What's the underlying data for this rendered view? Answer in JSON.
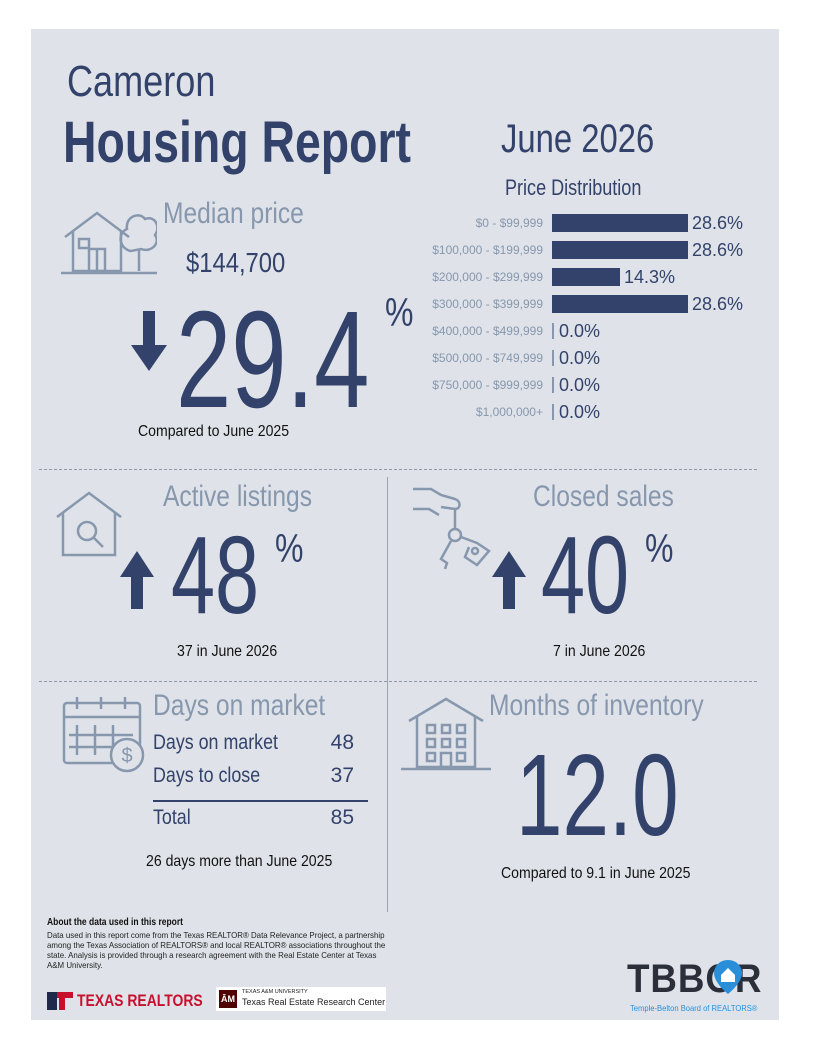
{
  "header": {
    "city": "Cameron",
    "report_title": "Housing Report",
    "month": "June 2026"
  },
  "median": {
    "heading": "Median price",
    "price": "$144,700",
    "change": "29.4",
    "pct_sign": "%",
    "direction": "down",
    "compared": "Compared to June 2025"
  },
  "price_distribution": {
    "title": "Price Distribution",
    "chart_data": {
      "type": "bar",
      "title": "Price Distribution",
      "categories": [
        "$0 - $99,999",
        "$100,000 - $199,999",
        "$200,000 - $299,999",
        "$300,000 - $399,999",
        "$400,000 - $499,999",
        "$500,000 - $749,999",
        "$750,000 - $999,999",
        "$1,000,000+"
      ],
      "values": [
        28.6,
        28.6,
        14.3,
        28.6,
        0.0,
        0.0,
        0.0,
        0.0
      ],
      "value_labels": [
        "28.6%",
        "28.6%",
        "14.3%",
        "28.6%",
        "0.0%",
        "0.0%",
        "0.0%",
        "0.0%"
      ],
      "orientation": "horizontal",
      "xlim": [
        0,
        28.6
      ]
    }
  },
  "active_listings": {
    "heading": "Active listings",
    "change": "48",
    "pct_sign": "%",
    "direction": "up",
    "caption": "37 in June 2026"
  },
  "closed_sales": {
    "heading": "Closed sales",
    "change": "40",
    "pct_sign": "%",
    "direction": "up",
    "caption": "7 in June 2026"
  },
  "days_on_market": {
    "heading": "Days on market",
    "rows": [
      {
        "label": "Days on market",
        "value": "48"
      },
      {
        "label": "Days to close",
        "value": "37"
      }
    ],
    "total_label": "Total",
    "total_value": "85",
    "caption": "26 days more than June 2025"
  },
  "months_inventory": {
    "heading": "Months of inventory",
    "value": "12.0",
    "caption": "Compared to 9.1 in June 2025"
  },
  "footer": {
    "about_title": "About the data used in this report",
    "about_text": "Data used in this report come from the Texas REALTOR® Data Relevance Project, a partnership among the Texas Association of REALTORS® and local REALTOR® associations throughout the state. Analysis is provided through a research agreement with the Real Estate Center at Texas A&M University.",
    "logo_texas_realtors": "TEXAS REALTORS",
    "tamu_small": "TEXAS A&M UNIVERSITY",
    "tamu_center": "Texas Real Estate Research Center",
    "tbbor_logo": "TBBOR",
    "tbbor_sub": "Temple-Belton Board of REALTORS®"
  },
  "colors": {
    "navy": "#33426a",
    "pale": "#8797ad",
    "panel": "#dfe3e9",
    "accent_blue": "#2a8fd8",
    "red": "#c8102e"
  }
}
